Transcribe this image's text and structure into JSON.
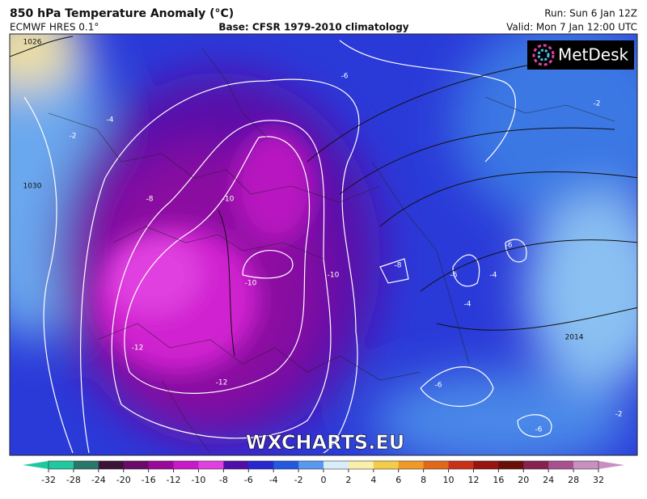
{
  "header": {
    "title": "850 hPa Temperature Anomaly (°C)",
    "model": "ECMWF HRES 0.1°",
    "base": "Base: CFSR 1979-2010 climatology",
    "run": "Run: Sun 6 Jan 12Z",
    "valid": "Valid: Mon 7 Jan 12:00 UTC"
  },
  "logo": "MetDesk",
  "watermark": "WXCHARTS.EU",
  "map": {
    "contour_labels": [
      "1026",
      "-6",
      "-4",
      "-2",
      "-2",
      "-8",
      "-10",
      "-10",
      "-10",
      "-8",
      "-6",
      "-6",
      "-4",
      "-12",
      "-12",
      "-6",
      "-6",
      "-4",
      "2014",
      "1030",
      "-2"
    ]
  },
  "colorbar": {
    "ticks": [
      -32,
      -28,
      -24,
      -20,
      -16,
      -12,
      -10,
      -8,
      -6,
      -4,
      -2,
      0,
      2,
      4,
      6,
      8,
      10,
      12,
      16,
      20,
      24,
      28,
      32
    ],
    "colors": [
      "#20c8a0",
      "#287868",
      "#3c1438",
      "#6a0a6a",
      "#9a0a9a",
      "#c818c8",
      "#e040e0",
      "#5010a8",
      "#2828d0",
      "#2458e0",
      "#5898f0",
      "#d8ecfa",
      "#f8f0a8",
      "#f4cc48",
      "#f09828",
      "#e06818",
      "#c83018",
      "#981410",
      "#681008",
      "#882050",
      "#a85090",
      "#c890c0"
    ]
  }
}
